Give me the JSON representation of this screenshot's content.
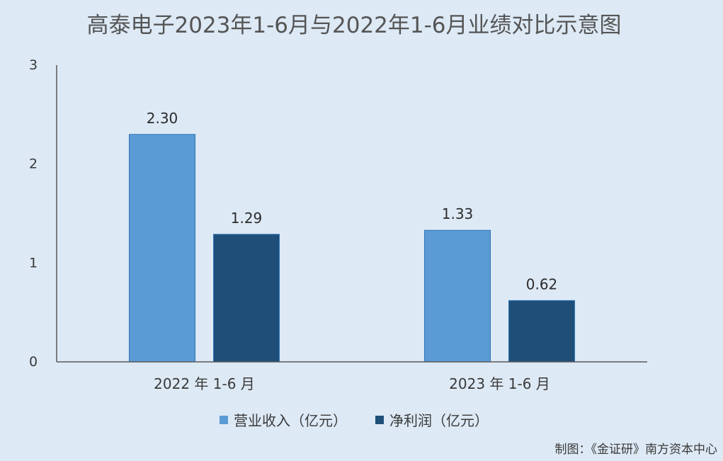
{
  "chart_data": {
    "type": "bar",
    "title": "高泰电子2023年1-6月与2022年1-6月业绩对比示意图",
    "categories": [
      "2022 年 1-6 月",
      "2023 年 1-6 月"
    ],
    "series": [
      {
        "name": "营业收入（亿元）",
        "values": [
          2.3,
          1.33
        ],
        "labels": [
          "2.30",
          "1.33"
        ],
        "color": "#5b9bd5"
      },
      {
        "name": "净利润（亿元）",
        "values": [
          1.29,
          0.62
        ],
        "labels": [
          "1.29",
          "0.62"
        ],
        "color": "#1f4e79"
      }
    ],
    "ylim": [
      0,
      3
    ],
    "yticks": [
      "0",
      "1",
      "2",
      "3"
    ],
    "grid": false,
    "legend_position": "bottom"
  },
  "credit": "制图：《金证研》南方资本中心",
  "colors": {
    "background": "#dde9f5",
    "axis": "#595959"
  }
}
